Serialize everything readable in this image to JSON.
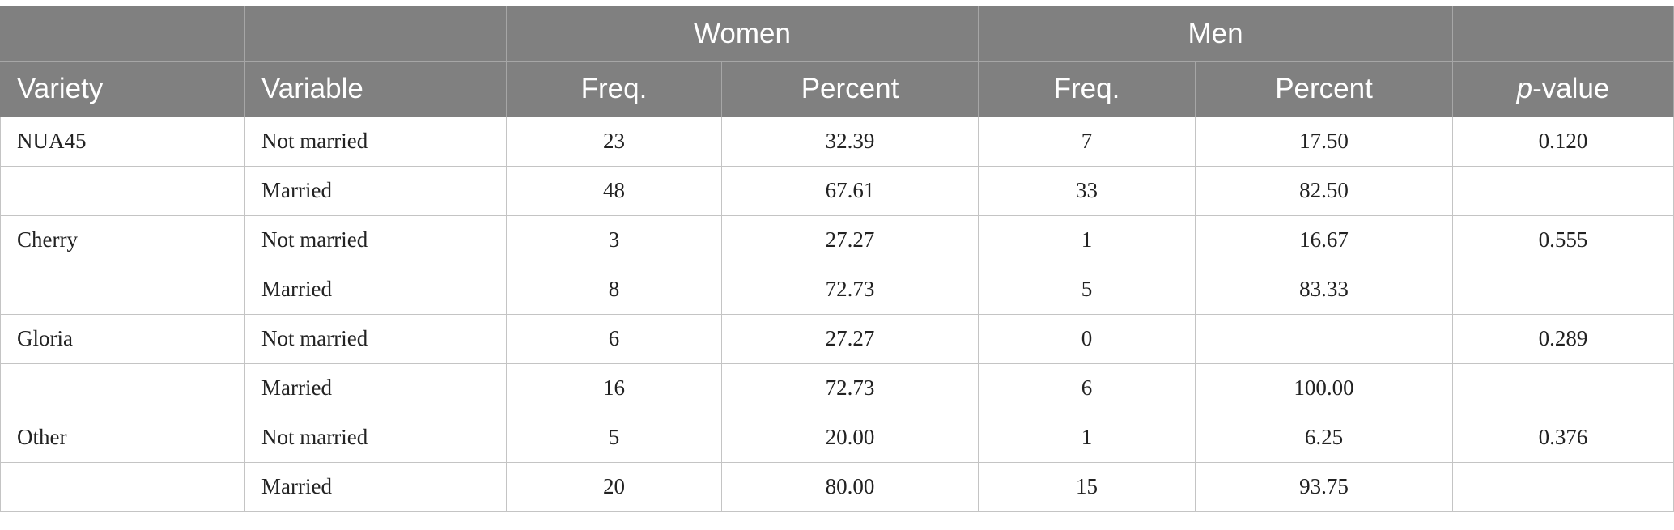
{
  "table": {
    "group_headers": {
      "women": "Women",
      "men": "Men"
    },
    "column_headers": {
      "variety": "Variety",
      "variable": "Variable",
      "women_freq": "Freq.",
      "women_percent": "Percent",
      "men_freq": "Freq.",
      "men_percent": "Percent",
      "pvalue_p": "p",
      "pvalue_rest": "-value"
    },
    "rows": [
      {
        "variety": "NUA45",
        "variable": "Not married",
        "women_freq": "23",
        "women_percent": "32.39",
        "men_freq": "7",
        "men_percent": "17.50",
        "p_value": "0.120"
      },
      {
        "variety": "",
        "variable": "Married",
        "women_freq": "48",
        "women_percent": "67.61",
        "men_freq": "33",
        "men_percent": "82.50",
        "p_value": ""
      },
      {
        "variety": "Cherry",
        "variable": "Not married",
        "women_freq": "3",
        "women_percent": "27.27",
        "men_freq": "1",
        "men_percent": "16.67",
        "p_value": "0.555"
      },
      {
        "variety": "",
        "variable": "Married",
        "women_freq": "8",
        "women_percent": "72.73",
        "men_freq": "5",
        "men_percent": "83.33",
        "p_value": ""
      },
      {
        "variety": "Gloria",
        "variable": "Not married",
        "women_freq": "6",
        "women_percent": "27.27",
        "men_freq": "0",
        "men_percent": "",
        "p_value": "0.289"
      },
      {
        "variety": "",
        "variable": "Married",
        "women_freq": "16",
        "women_percent": "72.73",
        "men_freq": "6",
        "men_percent": "100.00",
        "p_value": ""
      },
      {
        "variety": "Other",
        "variable": "Not married",
        "women_freq": "5",
        "women_percent": "20.00",
        "men_freq": "1",
        "men_percent": "6.25",
        "p_value": "0.376"
      },
      {
        "variety": "",
        "variable": "Married",
        "women_freq": "20",
        "women_percent": "80.00",
        "men_freq": "15",
        "men_percent": "93.75",
        "p_value": ""
      }
    ]
  }
}
